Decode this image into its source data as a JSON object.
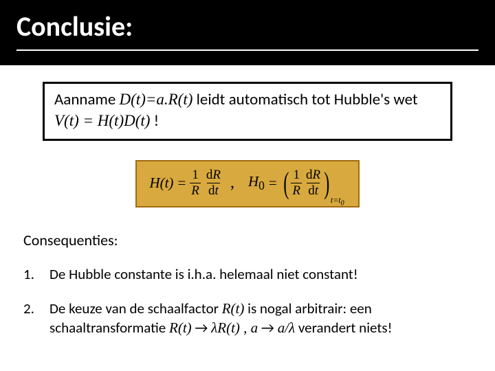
{
  "title": "Conclusie:",
  "assumption": {
    "prefix": "Aanname ",
    "eq1": "D(t)=a.R(t)",
    "mid": " leidt automatisch tot Hubble's wet ",
    "eq2": "V(t)  = H(t)D(t)",
    "suffix": "  !"
  },
  "formula": {
    "Ht": "H(t)",
    "eq": " = ",
    "one": "1",
    "R": "R",
    "dR": "dR",
    "dt": "dt",
    "d": "d",
    "comma": ",",
    "H0_H": "H",
    "H0_0": "0",
    "sub_t": "t=t",
    "sub_0": "0"
  },
  "consequences": {
    "heading": "Consequenties:",
    "items": [
      {
        "n": "1.",
        "text": "De Hubble constante is i.h.a. helemaal niet constant!"
      },
      {
        "n": "2.",
        "pre": "De keuze van de schaalfactor ",
        "rt": "R(t)",
        "post1": " is nogal arbitrair: een schaaltransformatie ",
        "trans1a": "R(t)",
        "arrow": " → ",
        "trans1b": "λR(t)",
        "sep": " , ",
        "trans2a": "a",
        "trans2b": "a/λ",
        "post2": " verandert niets!"
      }
    ]
  },
  "colors": {
    "titlebar_bg": "#000000",
    "titlebar_fg": "#ffffff",
    "formula_bg": "#d8a93e",
    "formula_border": "#a06a10",
    "body_bg": "#ffffff",
    "text": "#000000"
  }
}
